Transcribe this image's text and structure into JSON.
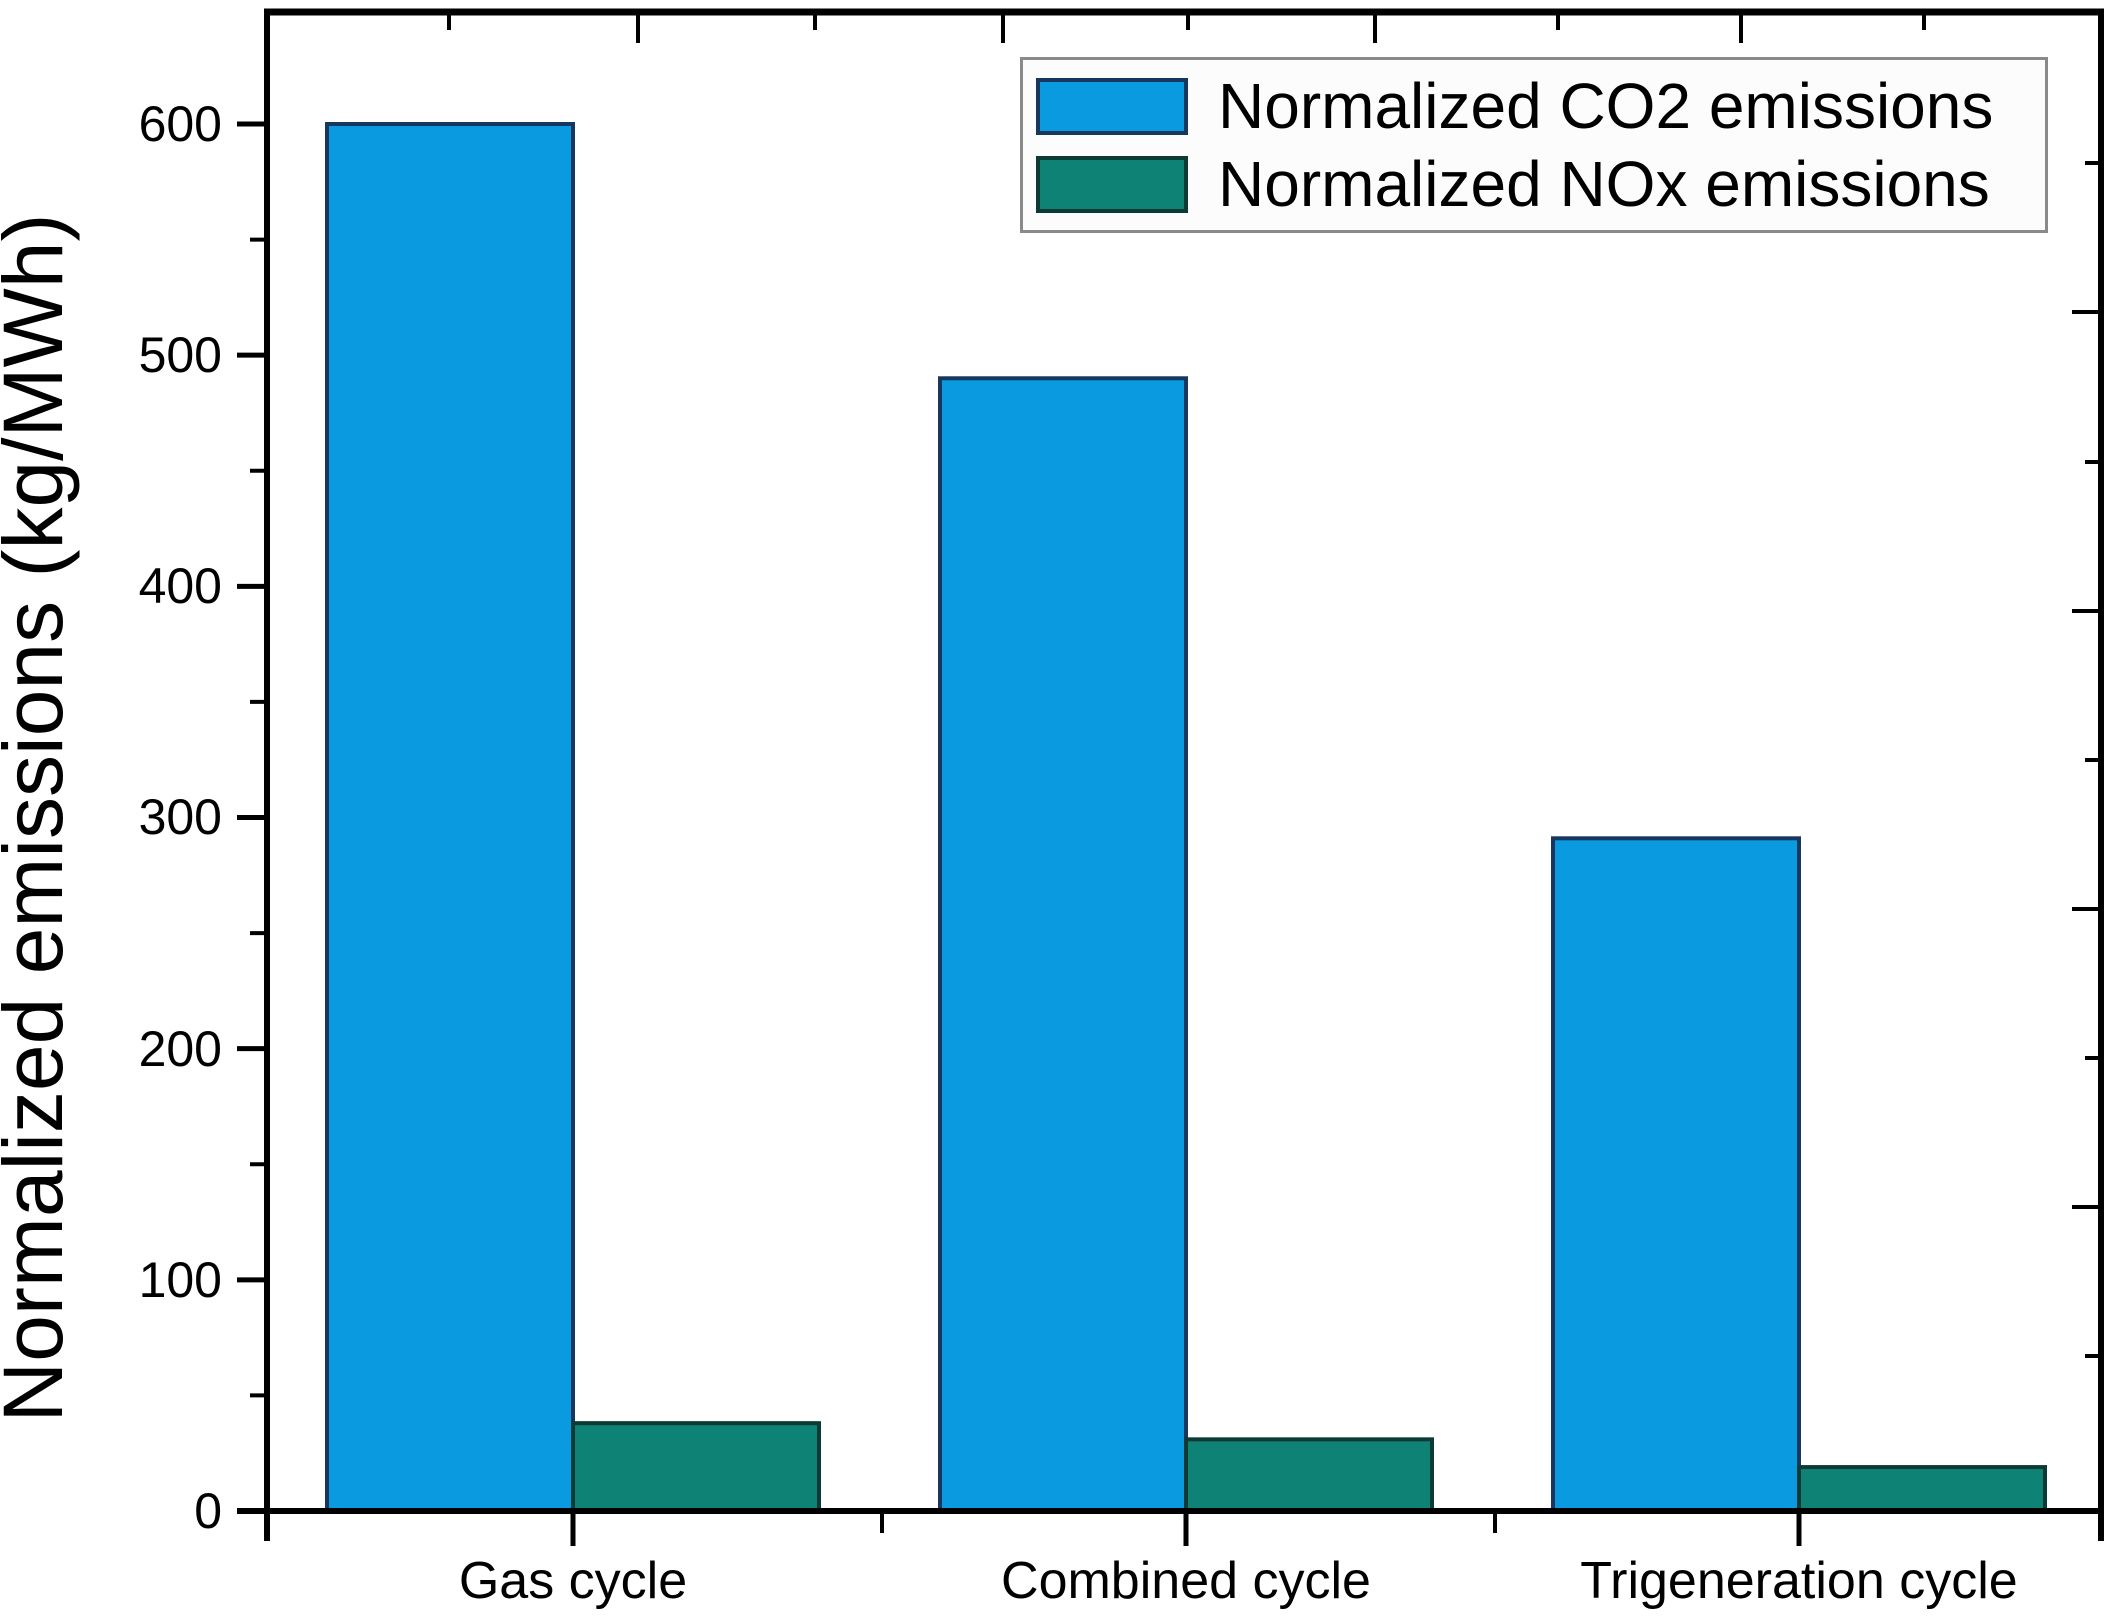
{
  "chart_data": {
    "type": "bar",
    "title": "",
    "categories": [
      "Gas cycle",
      "Combined cycle",
      "Trigeneration cycle"
    ],
    "series": [
      {
        "name": "Normalized CO2 emissions",
        "color": "#0a9ae0",
        "border_color": "#17375e",
        "values": [
          600,
          490,
          291
        ]
      },
      {
        "name": "Normalized NOx emissions",
        "color": "#0f8276",
        "border_color": "#0e3a35",
        "values": [
          38,
          31,
          19
        ]
      }
    ],
    "xlabel": "",
    "ylabel": "Normalized emissions (kg/MWh)",
    "ylim": [
      0,
      650
    ],
    "yticks": [
      0,
      100,
      200,
      300,
      400,
      500,
      600
    ],
    "ytick_minor_step": 50,
    "grid": false,
    "legend_position": "top-right",
    "axis_color": "#000000",
    "background_color": "#ffffff"
  }
}
